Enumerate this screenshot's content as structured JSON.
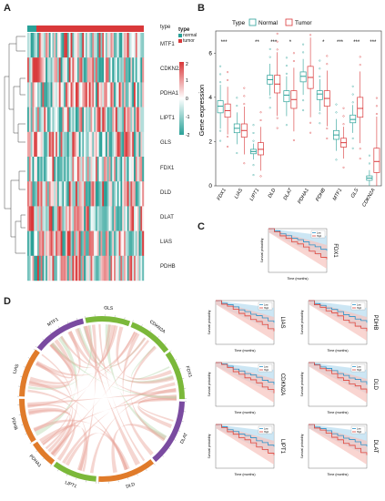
{
  "panels": {
    "A": "A",
    "B": "B",
    "C": "C",
    "D": "D"
  },
  "heatmap": {
    "genes": [
      "MTF1",
      "CDKN2A",
      "PDHA1",
      "LIPT1",
      "GLS",
      "FDX1",
      "DLD",
      "DLAT",
      "LIAS",
      "PDHB"
    ],
    "legend_title": "type",
    "type_header": "type",
    "groups": [
      {
        "name": "normal",
        "color": "#2aa198"
      },
      {
        "name": "tumor",
        "color": "#d9383a"
      }
    ],
    "scale_ticks": [
      "2",
      "1",
      "0",
      "-1",
      "-2"
    ],
    "colors": {
      "high": "#d9383a",
      "mid": "#ffffff",
      "low": "#2aa198"
    }
  },
  "chart_data": {
    "type": "box",
    "legend_title": "Type",
    "legend": [
      {
        "name": "Normal",
        "color": "#2aa198"
      },
      {
        "name": "Tumor",
        "color": "#d9383a"
      }
    ],
    "ylabel": "Gene expression",
    "ylim": [
      0,
      7
    ],
    "yticks": [
      0,
      2,
      4,
      6
    ],
    "categories": [
      "FDX1",
      "LIAS",
      "LIPT1",
      "DLD",
      "DLAT",
      "PDHA1",
      "PDHB",
      "MTF1",
      "GLS",
      "CDKN2A"
    ],
    "significance": [
      "***",
      "",
      "**",
      "***",
      "*",
      "",
      "*",
      "***",
      "***",
      "***"
    ],
    "series": [
      {
        "name": "Normal",
        "median": [
          3.6,
          2.6,
          1.55,
          4.8,
          4.1,
          4.95,
          4.15,
          2.3,
          3.0,
          0.35
        ],
        "q1": [
          3.3,
          2.4,
          1.45,
          4.6,
          3.8,
          4.7,
          3.9,
          2.1,
          2.85,
          0.25
        ],
        "q3": [
          3.85,
          2.8,
          1.65,
          5.0,
          4.3,
          5.15,
          4.3,
          2.5,
          3.2,
          0.45
        ]
      },
      {
        "name": "Tumor",
        "median": [
          3.4,
          2.5,
          1.65,
          4.6,
          3.9,
          4.9,
          3.95,
          1.95,
          3.5,
          1.1
        ],
        "q1": [
          3.1,
          2.2,
          1.4,
          4.2,
          3.5,
          4.4,
          3.6,
          1.75,
          3.1,
          0.6
        ],
        "q3": [
          3.7,
          2.8,
          1.95,
          5.0,
          4.3,
          5.4,
          4.3,
          2.15,
          4.0,
          1.7
        ]
      }
    ]
  },
  "survival": {
    "xlabel": "Time (months)",
    "ylabel": "Survival probability",
    "legend": [
      {
        "name": "Low",
        "color": "#2a93c9"
      },
      {
        "name": "High",
        "color": "#e0463c"
      }
    ],
    "genes": [
      "FDX1",
      "LIAS",
      "PDHB",
      "CDKN2A",
      "DLD",
      "LIPT1",
      "DLAT"
    ]
  },
  "chord": {
    "genes": [
      "MTF1",
      "GLS",
      "CDKN2A",
      "FDX1",
      "DLAT",
      "DLD",
      "LIPT1",
      "PDHA1",
      "PDHB",
      "LIAS"
    ],
    "colors": [
      "#7a4ba0",
      "#7bb83a",
      "#7bb83a",
      "#7bb83a",
      "#7a4ba0",
      "#e07b2a",
      "#7bb83a",
      "#e07b2a",
      "#e07b2a",
      "#e07b2a"
    ]
  }
}
